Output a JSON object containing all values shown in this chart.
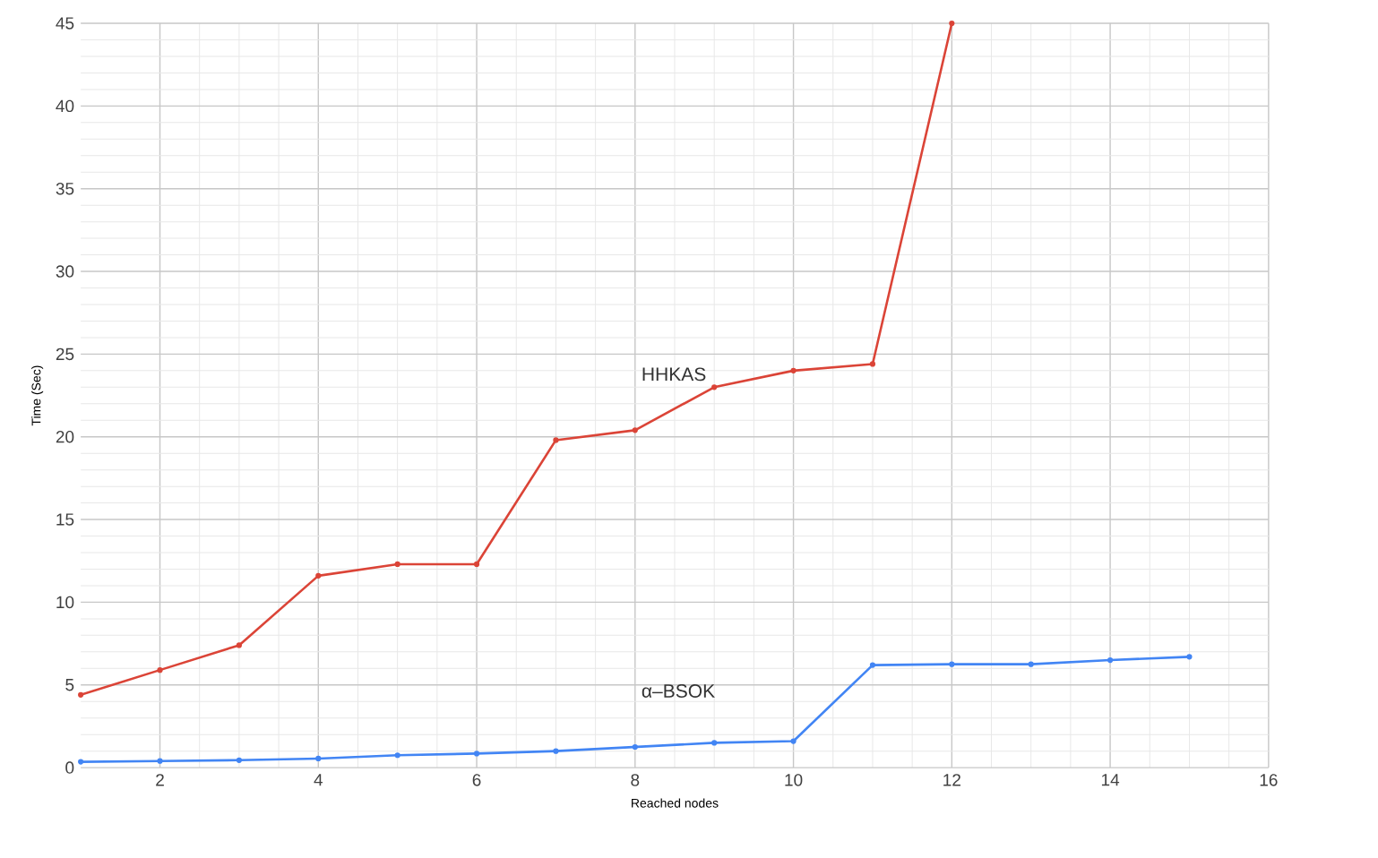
{
  "chart_data": {
    "type": "line",
    "xlabel": "Reached nodes",
    "ylabel": "Time (Sec)",
    "xlim": [
      1,
      16
    ],
    "ylim": [
      0,
      45
    ],
    "xticks": [
      2,
      4,
      6,
      8,
      10,
      12,
      14,
      16
    ],
    "yticks": [
      0,
      5,
      10,
      15,
      20,
      25,
      30,
      35,
      40,
      45
    ],
    "grid": true,
    "marker": "circle",
    "line_style": "solid",
    "legend": false,
    "series": [
      {
        "name": "HHKAS",
        "color": "#db4437",
        "x": [
          1,
          2,
          3,
          4,
          5,
          6,
          7,
          8,
          9,
          10,
          11,
          12
        ],
        "values": [
          4.4,
          5.9,
          7.4,
          11.6,
          12.3,
          12.3,
          19.8,
          20.4,
          23.0,
          24.0,
          24.4,
          45
        ]
      },
      {
        "name": "α–BSOK",
        "color": "#4285f4",
        "x": [
          1,
          2,
          3,
          4,
          5,
          6,
          7,
          8,
          9,
          10,
          11,
          12,
          13,
          14,
          15
        ],
        "values": [
          0.35,
          0.4,
          0.45,
          0.55,
          0.75,
          0.85,
          1.0,
          1.25,
          1.5,
          1.6,
          6.2,
          6.25,
          6.25,
          6.5,
          6.7
        ]
      }
    ]
  }
}
